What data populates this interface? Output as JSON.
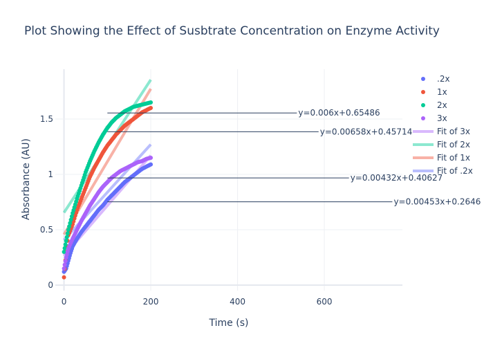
{
  "chart_data": {
    "type": "scatter",
    "title": "Plot Showing the Effect of Susbtrate Concentration on Enzyme Activity",
    "xlabel": "Time (s)",
    "ylabel": "Absorbance (AU)",
    "xlim": [
      -20,
      780
    ],
    "ylim": [
      -0.05,
      1.95
    ],
    "xticks": [
      0,
      200,
      400,
      600
    ],
    "yticks": [
      0,
      0.5,
      1,
      1.5
    ],
    "grid": true,
    "legend_position": "top-right",
    "legend": [
      ".2x",
      "1x",
      "2x",
      "3x",
      "Fit of 3x",
      "Fit of 2x",
      "Fit of 1x",
      "Fit of .2x"
    ],
    "series": [
      {
        "name": ".2x",
        "kind": "markers",
        "color": "#636efa",
        "x_range": [
          0,
          200
        ],
        "points": [
          [
            0,
            0.12
          ],
          [
            5,
            0.15
          ],
          [
            10,
            0.22
          ],
          [
            15,
            0.29
          ],
          [
            20,
            0.35
          ],
          [
            30,
            0.42
          ],
          [
            40,
            0.48
          ],
          [
            50,
            0.53
          ],
          [
            60,
            0.58
          ],
          [
            70,
            0.63
          ],
          [
            80,
            0.68
          ],
          [
            90,
            0.72
          ],
          [
            100,
            0.77
          ],
          [
            110,
            0.81
          ],
          [
            120,
            0.85
          ],
          [
            130,
            0.89
          ],
          [
            140,
            0.93
          ],
          [
            150,
            0.96
          ],
          [
            160,
            0.99
          ],
          [
            170,
            1.02
          ],
          [
            180,
            1.05
          ],
          [
            190,
            1.07
          ],
          [
            200,
            1.09
          ]
        ]
      },
      {
        "name": "1x",
        "kind": "markers",
        "color": "#EF553B",
        "x_range": [
          0,
          200
        ],
        "points": [
          [
            0,
            0.07
          ],
          [
            5,
            0.3
          ],
          [
            10,
            0.45
          ],
          [
            20,
            0.55
          ],
          [
            30,
            0.68
          ],
          [
            40,
            0.78
          ],
          [
            50,
            0.88
          ],
          [
            60,
            0.98
          ],
          [
            70,
            1.06
          ],
          [
            80,
            1.13
          ],
          [
            90,
            1.2
          ],
          [
            100,
            1.26
          ],
          [
            110,
            1.31
          ],
          [
            120,
            1.36
          ],
          [
            130,
            1.4
          ],
          [
            140,
            1.44
          ],
          [
            150,
            1.47
          ],
          [
            160,
            1.5
          ],
          [
            170,
            1.53
          ],
          [
            180,
            1.56
          ],
          [
            190,
            1.58
          ],
          [
            200,
            1.6
          ]
        ]
      },
      {
        "name": "2x",
        "kind": "markers",
        "color": "#00cc96",
        "x_range": [
          0,
          200
        ],
        "points": [
          [
            0,
            0.3
          ],
          [
            5,
            0.4
          ],
          [
            10,
            0.5
          ],
          [
            20,
            0.65
          ],
          [
            30,
            0.78
          ],
          [
            40,
            0.9
          ],
          [
            50,
            1.02
          ],
          [
            60,
            1.12
          ],
          [
            70,
            1.21
          ],
          [
            80,
            1.29
          ],
          [
            90,
            1.36
          ],
          [
            100,
            1.42
          ],
          [
            110,
            1.47
          ],
          [
            120,
            1.51
          ],
          [
            130,
            1.54
          ],
          [
            140,
            1.57
          ],
          [
            150,
            1.59
          ],
          [
            160,
            1.61
          ],
          [
            170,
            1.62
          ],
          [
            180,
            1.63
          ],
          [
            190,
            1.64
          ],
          [
            200,
            1.65
          ]
        ]
      },
      {
        "name": "3x",
        "kind": "markers",
        "color": "#ab63fa",
        "x_range": [
          0,
          200
        ],
        "points": [
          [
            0,
            0.15
          ],
          [
            5,
            0.25
          ],
          [
            10,
            0.33
          ],
          [
            20,
            0.42
          ],
          [
            30,
            0.5
          ],
          [
            40,
            0.58
          ],
          [
            50,
            0.65
          ],
          [
            60,
            0.72
          ],
          [
            70,
            0.78
          ],
          [
            80,
            0.84
          ],
          [
            90,
            0.89
          ],
          [
            100,
            0.93
          ],
          [
            110,
            0.97
          ],
          [
            120,
            1.0
          ],
          [
            130,
            1.03
          ],
          [
            140,
            1.05
          ],
          [
            150,
            1.07
          ],
          [
            160,
            1.09
          ],
          [
            170,
            1.11
          ],
          [
            180,
            1.12
          ],
          [
            190,
            1.14
          ],
          [
            200,
            1.15
          ]
        ]
      },
      {
        "name": "Fit of 3x",
        "kind": "line",
        "color": "#ab63fa",
        "slope": 0.00453,
        "intercept": 0.2646,
        "x_range": [
          0,
          200
        ]
      },
      {
        "name": "Fit of 2x",
        "kind": "line",
        "color": "#00cc96",
        "slope": 0.006,
        "intercept": 0.65486,
        "x_range": [
          0,
          200
        ]
      },
      {
        "name": "Fit of 1x",
        "kind": "line",
        "color": "#EF553B",
        "slope": 0.00658,
        "intercept": 0.45714,
        "x_range": [
          0,
          200
        ]
      },
      {
        "name": "Fit of .2x",
        "kind": "line",
        "color": "#636efa",
        "slope": 0.00432,
        "intercept": 0.40627,
        "x_range": [
          0,
          200
        ]
      }
    ],
    "annotations": [
      {
        "text": "y=0.006x+0.65486",
        "x": 100,
        "y": 1.555,
        "label_x": 540
      },
      {
        "text": "y=0.00658x+0.45714",
        "x": 100,
        "y": 1.385,
        "label_x": 590
      },
      {
        "text": "y=0.00432x+0.40627",
        "x": 100,
        "y": 0.968,
        "label_x": 660
      },
      {
        "text": "y=0.00453x+0.2646",
        "x": 100,
        "y": 0.752,
        "label_x": 760
      }
    ]
  }
}
